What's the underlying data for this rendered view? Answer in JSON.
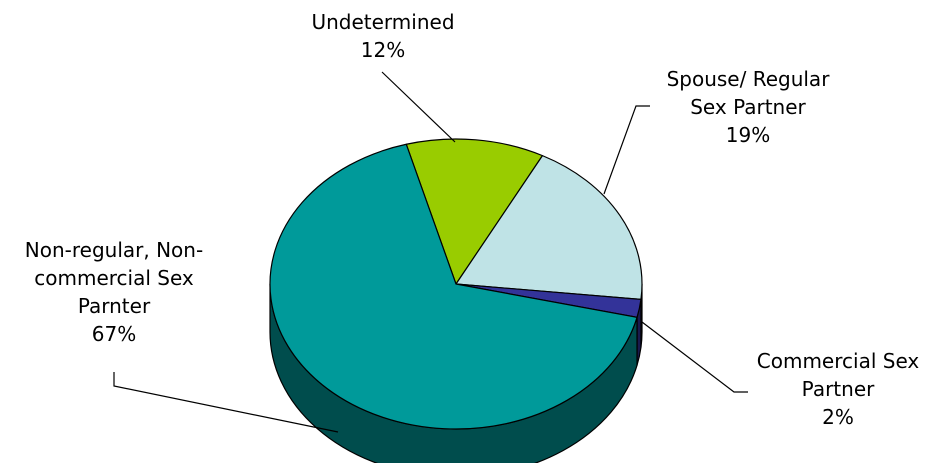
{
  "chart_data": {
    "type": "pie",
    "style": "3d",
    "categories": [
      "Undetermined",
      "Spouse/ Regular Sex Partner",
      "Commercial Sex Partner",
      "Non-regular, Non-commercial Sex Parnter"
    ],
    "values": [
      12,
      19,
      2,
      67
    ],
    "value_unit": "%",
    "colors": [
      "#99cc00",
      "#bfe3e6",
      "#333399",
      "#009a9a"
    ],
    "side_colors": [
      "#4d6600",
      "#5f7173",
      "#1a1a4d",
      "#004d4d"
    ],
    "labels": [
      {
        "lines": [
          "Undetermined",
          "12%"
        ]
      },
      {
        "lines": [
          "Spouse/ Regular",
          "Sex Partner",
          "19%"
        ]
      },
      {
        "lines": [
          "Commercial Sex",
          "Partner",
          "2%"
        ]
      },
      {
        "lines": [
          "Non-regular, Non-",
          "commercial Sex",
          "Parnter",
          "67%"
        ]
      }
    ],
    "title": ""
  }
}
